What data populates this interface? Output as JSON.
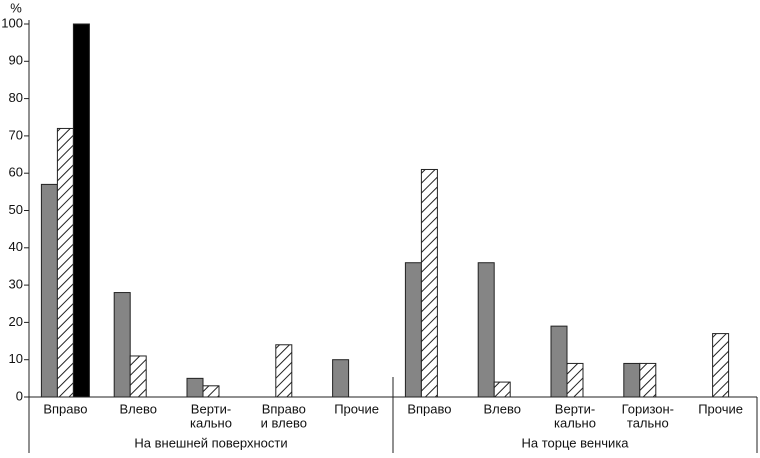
{
  "chart_data": {
    "type": "bar",
    "y_unit_label": "%",
    "groups": [
      {
        "label": "На внешней поверхности",
        "categories": [
          [
            "Вправо"
          ],
          [
            "Влево"
          ],
          [
            "Верти-",
            "кально"
          ],
          [
            "Вправо",
            "и влево"
          ],
          [
            "Прочие"
          ]
        ]
      },
      {
        "label": "На торце венчика",
        "categories": [
          [
            "Вправо"
          ],
          [
            "Влево"
          ],
          [
            "Верти-",
            "кально"
          ],
          [
            "Горизон-",
            "тально"
          ],
          [
            "Прочие"
          ]
        ]
      }
    ],
    "series": [
      {
        "color": "#858585",
        "pattern": "solid",
        "values": [
          57,
          28,
          5,
          null,
          10,
          36,
          36,
          19,
          9,
          null
        ]
      },
      {
        "color": "#ffffff",
        "pattern": "hatch",
        "values": [
          72,
          11,
          3,
          14,
          null,
          61,
          4,
          9,
          9,
          17
        ]
      },
      {
        "color": "#000000",
        "pattern": "solid",
        "values": [
          100,
          null,
          null,
          null,
          null,
          null,
          null,
          null,
          null,
          null
        ]
      }
    ],
    "ylim": [
      0,
      100
    ],
    "yticks": [
      0,
      10,
      20,
      30,
      40,
      50,
      60,
      70,
      80,
      90,
      100
    ]
  }
}
